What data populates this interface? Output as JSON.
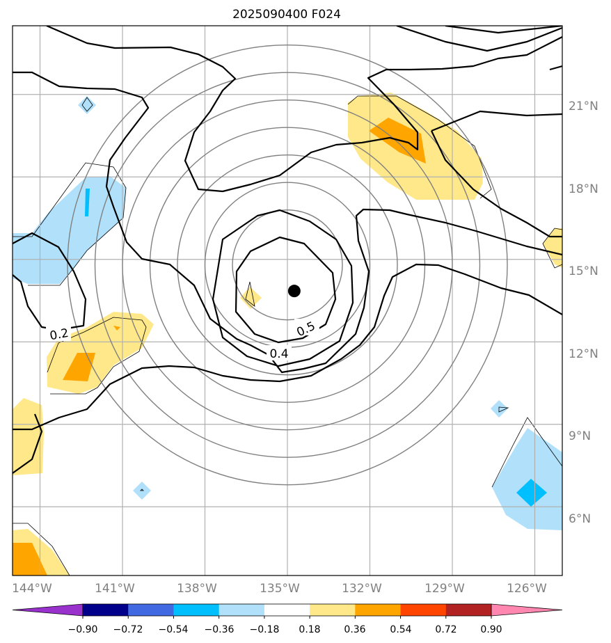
{
  "chart_data": {
    "type": "contour-map",
    "title": "2025090400 F024",
    "projection": "PlateCarree",
    "lon_range": [
      -145,
      -125
    ],
    "lat_range": [
      3.5,
      23.5
    ],
    "lon_ticks": [
      -144,
      -141,
      -138,
      -135,
      -132,
      -129,
      -126
    ],
    "lon_tick_labels": [
      "144°W",
      "141°W",
      "138°W",
      "135°W",
      "132°W",
      "129°W",
      "126°W"
    ],
    "lat_ticks": [
      6,
      9,
      12,
      15,
      18,
      21
    ],
    "lat_tick_labels": [
      "6°N",
      "9°N",
      "12°N",
      "15°N",
      "18°N",
      "21°N"
    ],
    "center_marker": {
      "lon": -134.75,
      "lat": 13.85
    },
    "range_rings_deg": [
      2,
      3,
      4,
      5,
      6,
      7,
      8
    ],
    "contour_labels": [
      {
        "text": "0.2",
        "lon": -143.0,
        "lat": 13.2
      },
      {
        "text": "0.5",
        "lon": -134.1,
        "lat": 13.4
      },
      {
        "text": "0.4",
        "lon": -135.0,
        "lat": 12.0
      }
    ],
    "colorbar": {
      "boundaries": [
        -0.9,
        -0.72,
        -0.54,
        -0.36,
        -0.18,
        0.18,
        0.36,
        0.54,
        0.72,
        0.9
      ],
      "tick_labels": [
        "−0.90",
        "−0.72",
        "−0.54",
        "−0.36",
        "−0.18",
        "0.18",
        "0.36",
        "0.54",
        "0.72",
        "0.90"
      ],
      "colors": [
        "#9932cc",
        "#00008b",
        "#4169e1",
        "#00bfff",
        "#b0e0fa",
        "#ffffff",
        "#ffe88a",
        "#ffa500",
        "#ff4500",
        "#b22222",
        "#ff87b0"
      ],
      "extend": "both"
    }
  }
}
